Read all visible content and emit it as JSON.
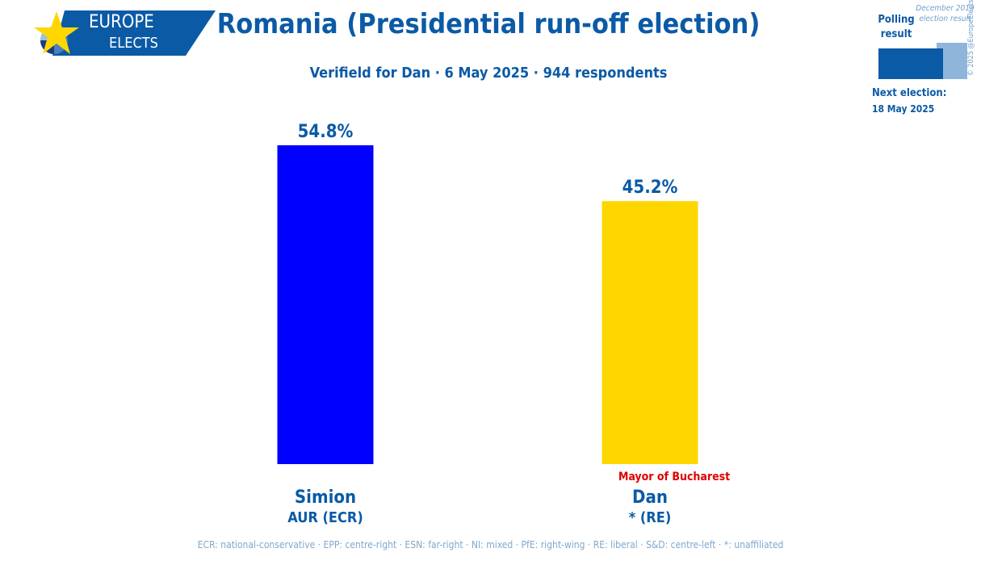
{
  "logo": {
    "line1": "EUROPE",
    "line2": "ELECTS"
  },
  "header": {
    "title": "Romania (Presidential run-off election)",
    "subtitle": "Verifield for Dan · 6 May 2025 · 944 respondents"
  },
  "legend": {
    "polling": "Polling result",
    "previous": "December 2019 election result",
    "next_label": "Next election:",
    "next_date": "18 May 2025",
    "copyright": "© 2025 @EuropeElects"
  },
  "chart_data": {
    "type": "bar",
    "categories": [
      "Simion",
      "Dan"
    ],
    "parties": [
      "AUR (ECR)",
      "* (RE)"
    ],
    "values": [
      54.8,
      45.2
    ],
    "value_labels": [
      "54.8%",
      "45.2%"
    ],
    "colors": [
      "#0000ff",
      "#ffd700"
    ],
    "annotations": [
      "",
      "Mayor of Bucharest"
    ],
    "annotation_color": "#e00000",
    "ylim": [
      0,
      55
    ]
  },
  "footer": "ECR: national-conservative · EPP: centre-right · ESN: far-right · NI: mixed · PfE: right-wing · RE: liberal · S&D: centre-left · *: unaffiliated"
}
